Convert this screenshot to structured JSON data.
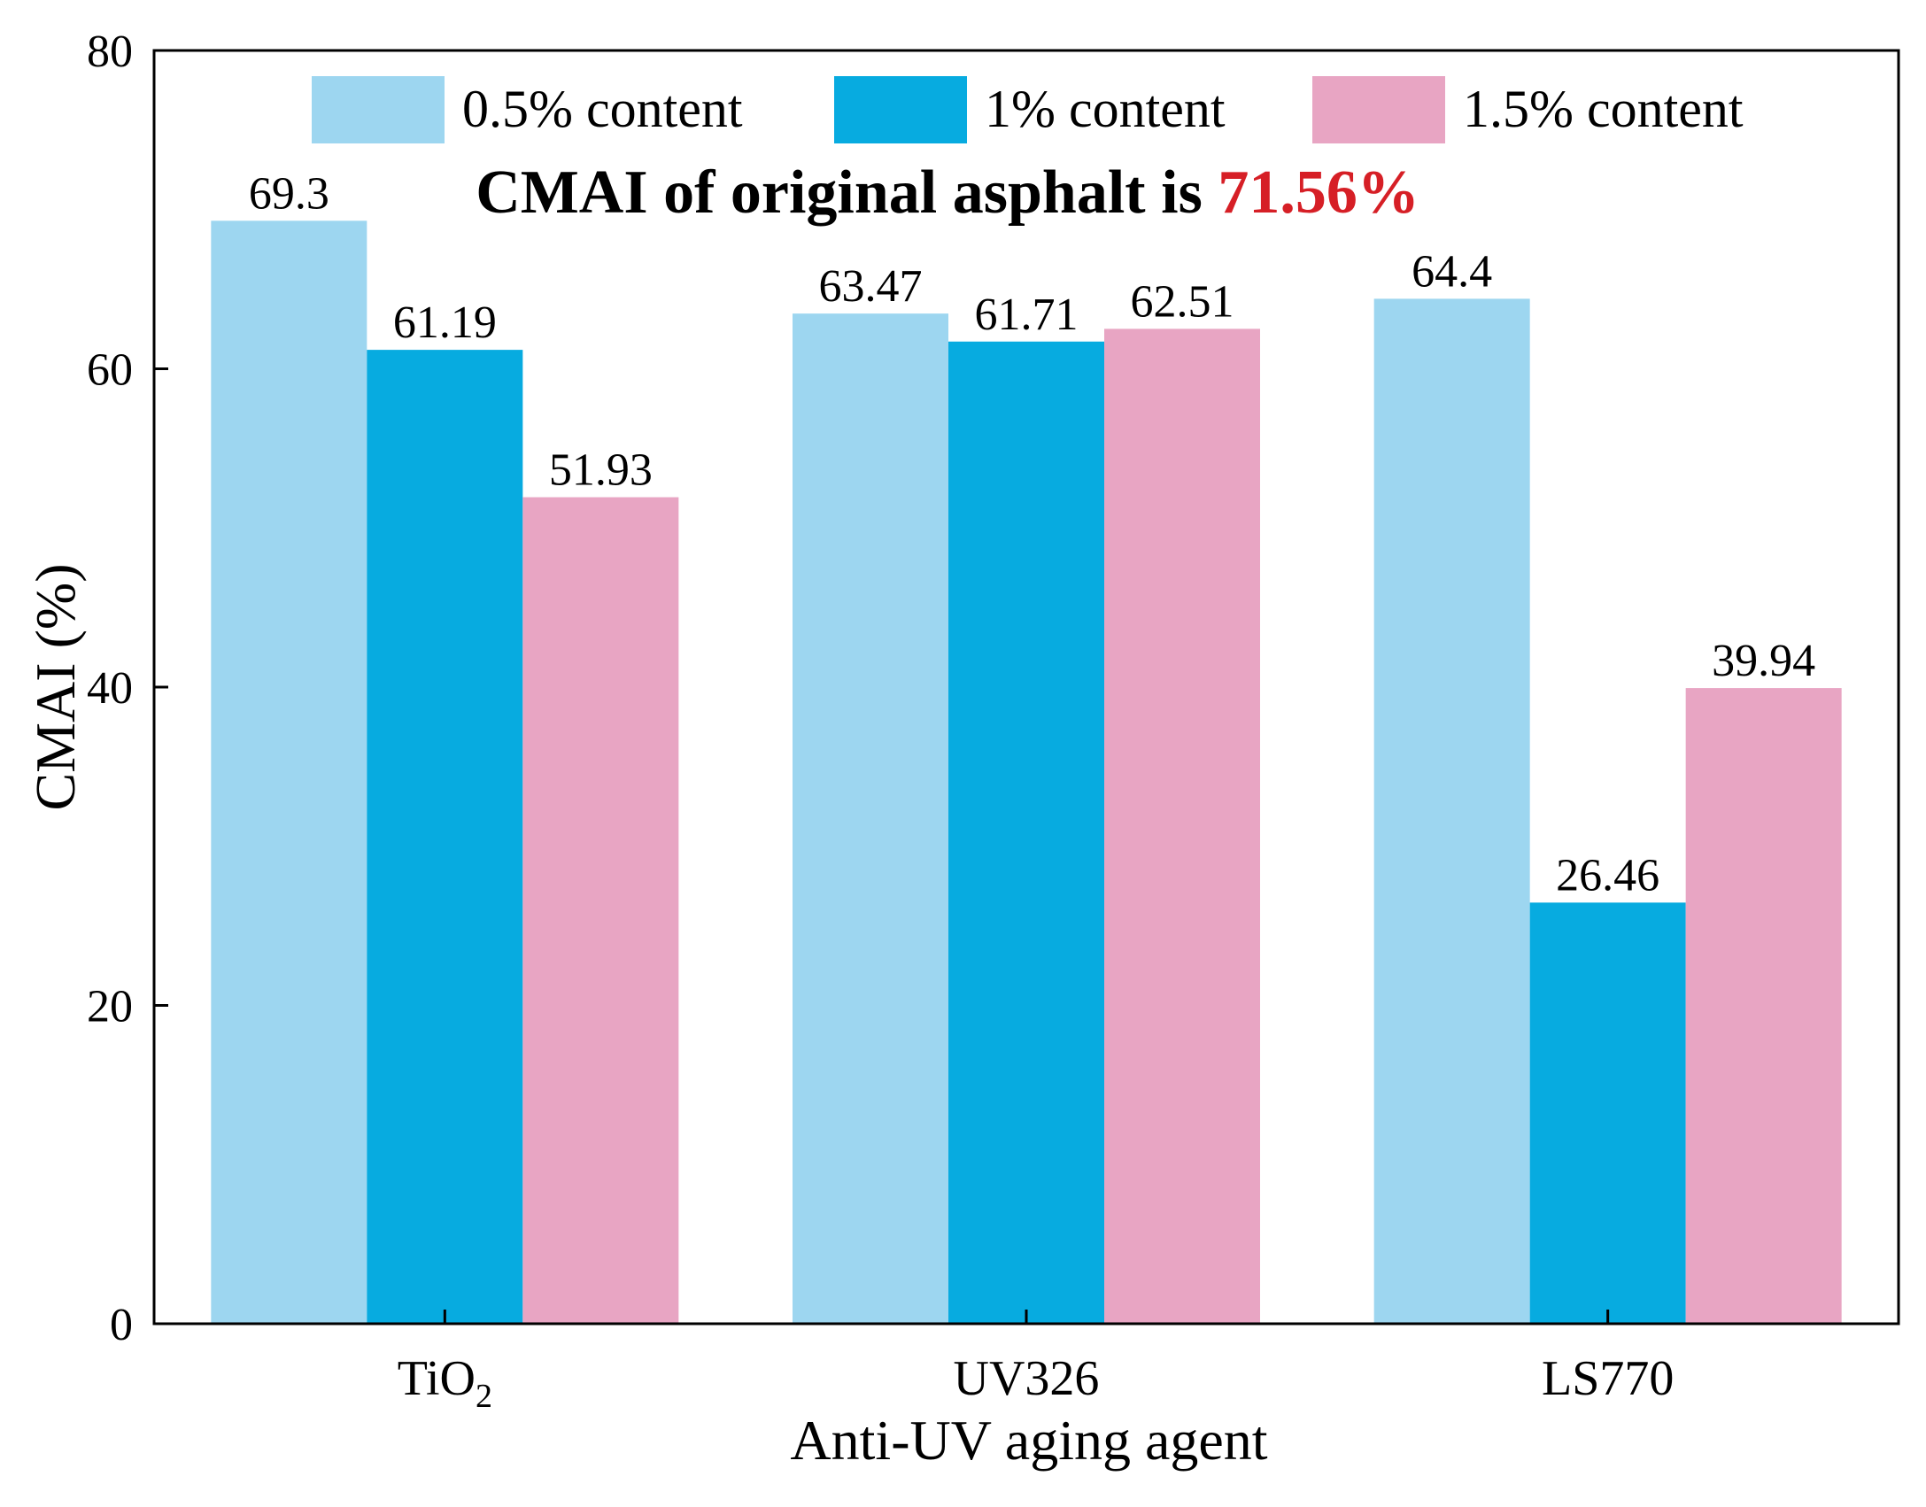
{
  "chart_data": {
    "type": "bar",
    "title": "",
    "xlabel": "Anti-UV aging agent",
    "ylabel": "CMAI (%)",
    "ylim": [
      0,
      80
    ],
    "yticks": [
      0,
      20,
      40,
      60,
      80
    ],
    "grid": false,
    "legend_position": "top",
    "categories": [
      {
        "base": "TiO",
        "sub": "2"
      },
      {
        "base": "UV326",
        "sub": ""
      },
      {
        "base": "LS770",
        "sub": ""
      }
    ],
    "series": [
      {
        "name": "0.5% content",
        "color": "#9DD6F0",
        "values": [
          69.3,
          63.47,
          64.4
        ],
        "labels": [
          "69.3",
          "63.47",
          "64.4"
        ]
      },
      {
        "name": "1% content",
        "color": "#07ABE0",
        "values": [
          61.19,
          61.71,
          26.46
        ],
        "labels": [
          "61.19",
          "61.71",
          "26.46"
        ]
      },
      {
        "name": "1.5% content",
        "color": "#E8A5C3",
        "values": [
          51.93,
          62.51,
          39.94
        ],
        "labels": [
          "51.93",
          "62.51",
          "39.94"
        ]
      }
    ],
    "annotation": {
      "prefix": "CMAI of original asphalt is ",
      "highlight": "71.56%",
      "highlight_color": "#D61F26"
    }
  }
}
